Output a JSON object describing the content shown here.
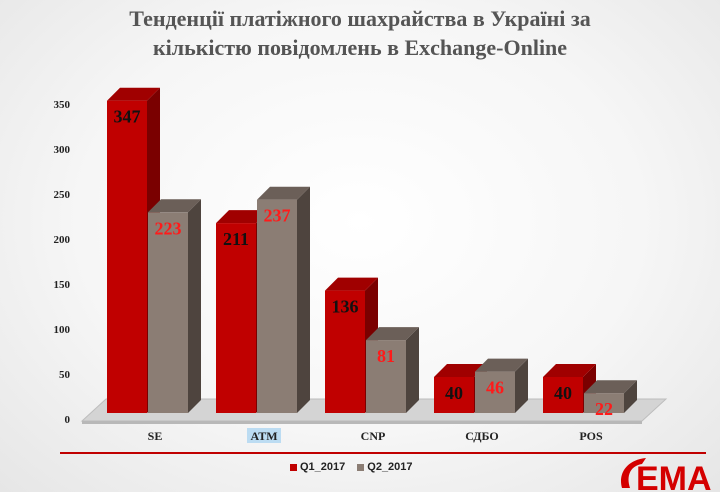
{
  "title_lines": [
    "Тенденції платіжного шахрайства в Україні за",
    "кількістю повідомлень в Exchange-Online"
  ],
  "logo": {
    "text": "EMA",
    "color": "#d40000"
  },
  "colors": {
    "q1": "#c00000",
    "q1_side": "#7a0000",
    "q1_top": "#a00000",
    "q2": "#8b7d74",
    "q2_side": "#4e443e",
    "q2_top": "#6b5f58",
    "label_on_q1": "#111111",
    "label_on_q2": "#ff1a1a",
    "accent_line": "#c00000",
    "highlight": "#bcdcf2"
  },
  "chart_data": {
    "type": "bar",
    "title": "Тенденції платіжного шахрайства в Україні за кількістю повідомлень в Exchange-Online",
    "xlabel": "",
    "ylabel": "",
    "categories": [
      "SE",
      "ATM",
      "CNP",
      "СДБО",
      "POS"
    ],
    "highlighted_category": "ATM",
    "series": [
      {
        "name": "Q1_2017",
        "values": [
          347,
          211,
          136,
          40,
          40
        ]
      },
      {
        "name": "Q2_2017",
        "values": [
          223,
          237,
          81,
          46,
          22
        ]
      }
    ],
    "yticks": [
      0,
      50,
      100,
      150,
      200,
      250,
      300,
      350
    ],
    "ylim": [
      0,
      350
    ],
    "grid": false,
    "legend": "bottom-center",
    "style": "3d-clustered-column"
  }
}
